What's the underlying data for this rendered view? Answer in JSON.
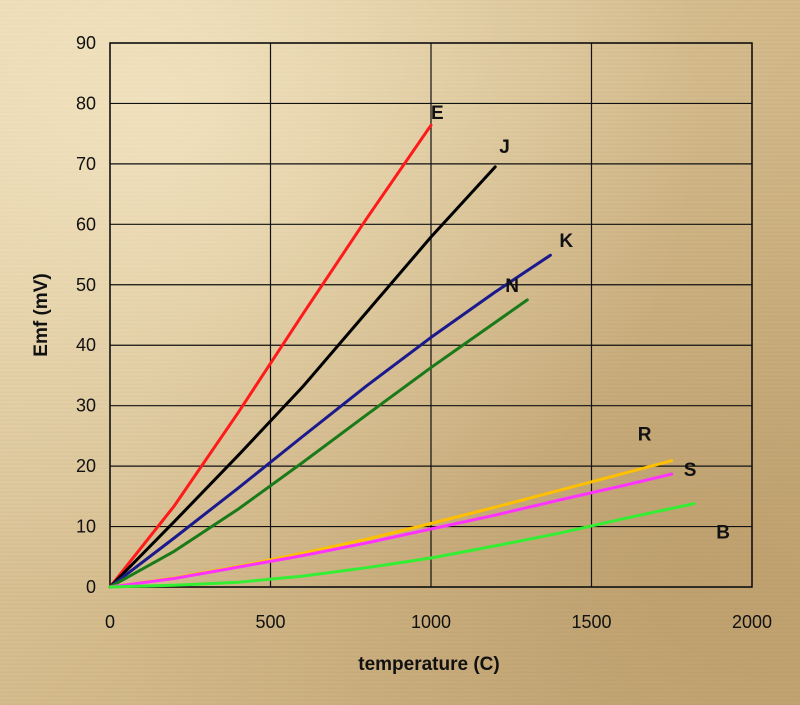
{
  "chart_data": {
    "type": "line",
    "xlabel": "temperature (C)",
    "ylabel": "Emf (mV)",
    "xlim": [
      0,
      2000
    ],
    "ylim": [
      0,
      90
    ],
    "xticks": [
      0,
      500,
      1000,
      1500,
      2000
    ],
    "yticks": [
      0,
      10,
      20,
      30,
      40,
      50,
      60,
      70,
      80,
      90
    ],
    "grid": true,
    "legend": "inline labels at line ends",
    "series": [
      {
        "name": "E",
        "color": "#ff1a1a",
        "x": [
          0,
          200,
          400,
          600,
          800,
          1000
        ],
        "y": [
          0,
          13.4,
          28.9,
          45.1,
          61.0,
          76.4
        ]
      },
      {
        "name": "J",
        "color": "#000000",
        "x": [
          0,
          200,
          400,
          600,
          800,
          1000,
          1200
        ],
        "y": [
          0,
          10.8,
          21.8,
          33.1,
          45.5,
          57.9,
          69.5
        ]
      },
      {
        "name": "K",
        "color": "#1a1a8c",
        "x": [
          0,
          200,
          400,
          600,
          800,
          1000,
          1200,
          1372
        ],
        "y": [
          0,
          8.1,
          16.4,
          24.9,
          33.3,
          41.3,
          48.8,
          54.9
        ]
      },
      {
        "name": "N",
        "color": "#1a7a1a",
        "x": [
          0,
          200,
          400,
          600,
          800,
          1000,
          1300
        ],
        "y": [
          0,
          5.9,
          12.9,
          20.6,
          28.5,
          36.3,
          47.5
        ]
      },
      {
        "name": "R",
        "color": "#ffc000",
        "x": [
          0,
          200,
          400,
          600,
          800,
          1000,
          1200,
          1400,
          1600,
          1750
        ],
        "y": [
          0,
          1.5,
          3.4,
          5.6,
          7.9,
          10.5,
          13.2,
          16.0,
          18.8,
          20.9
        ]
      },
      {
        "name": "S",
        "color": "#ff33ff",
        "x": [
          0,
          200,
          400,
          600,
          800,
          1000,
          1200,
          1400,
          1600,
          1750
        ],
        "y": [
          0,
          1.4,
          3.3,
          5.2,
          7.3,
          9.6,
          11.9,
          14.4,
          16.8,
          18.7
        ]
      },
      {
        "name": "B",
        "color": "#33ee33",
        "x": [
          0,
          200,
          400,
          600,
          800,
          1000,
          1200,
          1400,
          1600,
          1820
        ],
        "y": [
          0,
          0.3,
          0.8,
          1.8,
          3.2,
          4.8,
          6.8,
          8.9,
          11.3,
          13.8
        ]
      }
    ]
  }
}
